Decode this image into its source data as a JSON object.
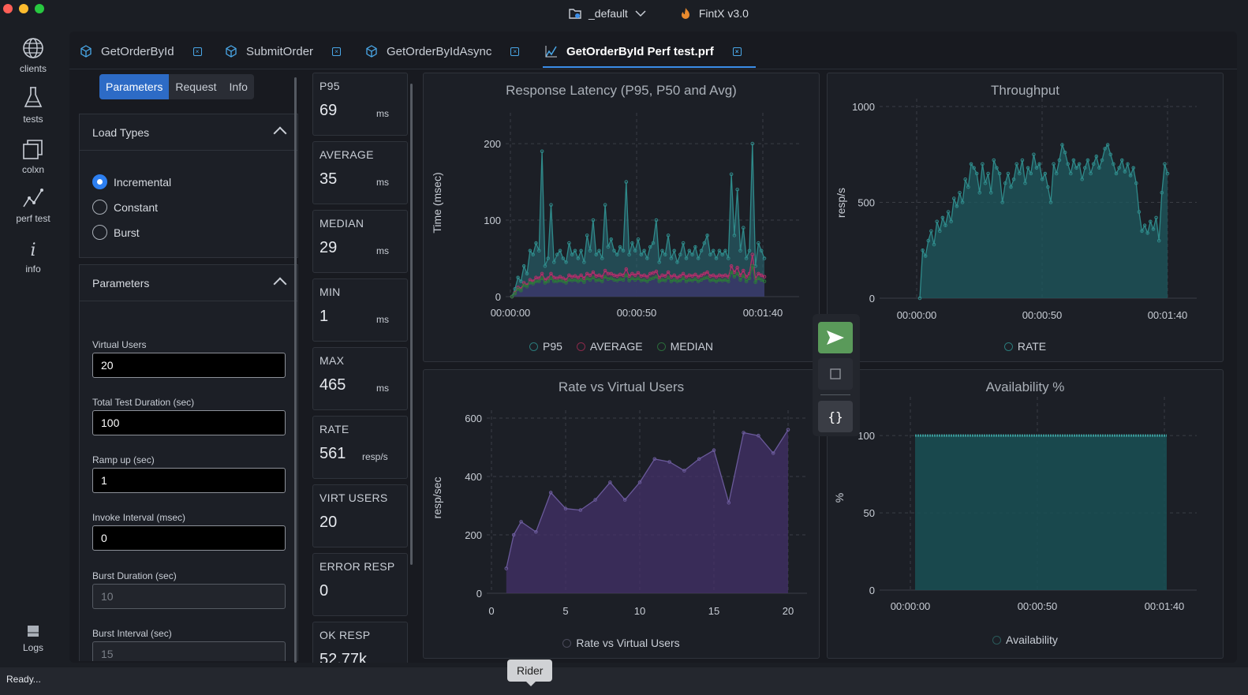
{
  "window": {
    "workspace": "_default",
    "app_title": "FintX v3.0"
  },
  "nav": [
    {
      "label": "clients",
      "icon": "globe-icon"
    },
    {
      "label": "tests",
      "icon": "flask-icon"
    },
    {
      "label": "colxn",
      "icon": "collection-icon"
    },
    {
      "label": "perf test",
      "icon": "chart-line-icon"
    },
    {
      "label": "info",
      "icon": "info-icon"
    },
    {
      "label": "Logs",
      "icon": "logs-icon"
    }
  ],
  "tabs": [
    {
      "label": "GetOrderById",
      "icon": "cube-icon"
    },
    {
      "label": "SubmitOrder",
      "icon": "cube-icon"
    },
    {
      "label": "GetOrderByIdAsync",
      "icon": "cube-icon"
    },
    {
      "label": "GetOrderById Perf test.prf",
      "icon": "perf-chart-icon",
      "active": true
    }
  ],
  "subtabs": [
    "Parameters",
    "Request",
    "Info"
  ],
  "load_types": {
    "title": "Load Types",
    "options": [
      "Incremental",
      "Constant",
      "Burst"
    ],
    "selected": "Incremental"
  },
  "parameters": {
    "title": "Parameters",
    "fields": [
      {
        "label": "Virtual Users",
        "value": "20"
      },
      {
        "label": "Total Test Duration (sec)",
        "value": "100"
      },
      {
        "label": "Ramp up (sec)",
        "value": "1"
      },
      {
        "label": "Invoke Interval (msec)",
        "value": "0"
      },
      {
        "label": "Burst Duration (sec)",
        "value": "10"
      },
      {
        "label": "Burst Interval (sec)",
        "value": "15"
      }
    ]
  },
  "metrics": [
    {
      "label": "P95",
      "value": "69",
      "unit": "ms"
    },
    {
      "label": "AVERAGE",
      "value": "35",
      "unit": "ms"
    },
    {
      "label": "MEDIAN",
      "value": "29",
      "unit": "ms"
    },
    {
      "label": "MIN",
      "value": "1",
      "unit": "ms"
    },
    {
      "label": "MAX",
      "value": "465",
      "unit": "ms"
    },
    {
      "label": "RATE",
      "value": "561",
      "unit": "resp/s"
    },
    {
      "label": "VIRT USERS",
      "value": "20",
      "unit": ""
    },
    {
      "label": "ERROR RESP",
      "value": "0",
      "unit": ""
    },
    {
      "label": "OK RESP",
      "value": "52.77k",
      "unit": ""
    }
  ],
  "colors": {
    "accent": "#2d6bc6",
    "teal": "#2a8c8c",
    "purple": "#5a4a8a",
    "send_green": "#5a9a5a"
  },
  "status": {
    "text": "Ready...",
    "tooltip": "Rider"
  },
  "chart_data": [
    {
      "type": "line",
      "title": "Response Latency (P95, P50 and Avg)",
      "ylabel": "Time (msec)",
      "xlabel": "",
      "x_ticks": [
        "00:00:00",
        "00:00:50",
        "00:01:40"
      ],
      "y_ticks": [
        "0",
        "100",
        "200"
      ],
      "ylim": [
        0,
        230
      ],
      "xlim": [
        0,
        110
      ],
      "series": [
        {
          "name": "P95",
          "values": [
            0,
            10,
            25,
            20,
            40,
            30,
            60,
            55,
            70,
            60,
            190,
            40,
            50,
            120,
            45,
            55,
            60,
            50,
            45,
            70,
            55,
            60,
            50,
            60,
            45,
            80,
            60,
            100,
            55,
            60,
            50,
            120,
            65,
            75,
            60,
            55,
            65,
            60,
            150,
            55,
            70,
            60,
            75,
            55,
            60,
            50,
            65,
            70,
            100,
            45,
            60,
            55,
            80,
            50,
            60,
            45,
            55,
            70,
            50,
            60,
            55,
            65,
            50,
            60,
            70,
            80,
            55,
            60,
            50,
            60,
            55,
            60,
            50,
            160,
            80,
            140,
            60,
            90,
            50,
            60,
            200,
            40,
            70,
            60,
            50
          ]
        },
        {
          "name": "AVERAGE",
          "values": [
            0,
            5,
            12,
            10,
            18,
            15,
            22,
            20,
            25,
            24,
            30,
            22,
            24,
            30,
            25,
            24,
            26,
            24,
            22,
            28,
            26,
            27,
            25,
            28,
            24,
            30,
            28,
            32,
            27,
            28,
            26,
            34,
            30,
            30,
            28,
            27,
            29,
            28,
            36,
            27,
            30,
            28,
            31,
            27,
            28,
            26,
            30,
            31,
            33,
            25,
            28,
            27,
            32,
            26,
            28,
            25,
            27,
            30,
            26,
            28,
            27,
            29,
            26,
            28,
            30,
            32,
            27,
            28,
            26,
            28,
            27,
            28,
            26,
            40,
            32,
            38,
            28,
            34,
            26,
            30,
            55,
            24,
            30,
            28,
            26
          ]
        },
        {
          "name": "MEDIAN",
          "values": [
            0,
            4,
            10,
            8,
            15,
            13,
            18,
            17,
            20,
            20,
            24,
            18,
            20,
            24,
            20,
            20,
            21,
            20,
            18,
            22,
            21,
            22,
            20,
            22,
            19,
            24,
            22,
            25,
            21,
            22,
            20,
            26,
            23,
            24,
            22,
            21,
            23,
            22,
            28,
            21,
            24,
            22,
            24,
            21,
            22,
            20,
            23,
            24,
            26,
            20,
            22,
            21,
            25,
            20,
            22,
            20,
            21,
            24,
            20,
            22,
            21,
            23,
            20,
            22,
            24,
            25,
            21,
            22,
            20,
            22,
            21,
            22,
            20,
            32,
            26,
            30,
            22,
            27,
            20,
            24,
            40,
            19,
            24,
            22,
            20
          ]
        }
      ],
      "legend": "bottom"
    },
    {
      "type": "area",
      "title": "Throughput",
      "ylabel": "resp/s",
      "xlabel": "",
      "x_ticks": [
        "00:00:00",
        "00:00:50",
        "00:01:40"
      ],
      "y_ticks": [
        "0",
        "500",
        "1000"
      ],
      "ylim": [
        0,
        1000
      ],
      "series": [
        {
          "name": "RATE",
          "values": [
            0,
            250,
            220,
            300,
            350,
            280,
            400,
            350,
            420,
            380,
            450,
            400,
            520,
            480,
            550,
            500,
            620,
            580,
            700,
            680,
            650,
            550,
            700,
            600,
            650,
            550,
            720,
            680,
            650,
            500,
            600,
            650,
            580,
            620,
            700,
            650,
            720,
            600,
            680,
            650,
            750,
            680,
            700,
            620,
            650,
            580,
            500,
            700,
            650,
            720,
            800,
            760,
            700,
            650,
            720,
            680,
            700,
            620,
            680,
            720,
            650,
            700,
            740,
            680,
            720,
            780,
            800,
            750,
            700,
            650,
            680,
            720,
            660,
            700,
            640,
            680,
            600,
            450,
            350,
            380,
            340,
            400,
            360,
            420,
            300,
            550,
            700,
            650
          ]
        }
      ],
      "legend": "bottom"
    },
    {
      "type": "area",
      "title": "Rate vs Virtual Users",
      "ylabel": "resp/sec",
      "xlabel": "",
      "x": [
        1,
        1.5,
        2,
        3,
        4,
        5,
        6,
        7,
        8,
        9,
        10,
        11,
        12,
        13,
        14,
        15,
        16,
        17,
        18,
        19,
        20
      ],
      "values": [
        85,
        200,
        245,
        210,
        345,
        290,
        285,
        320,
        380,
        320,
        380,
        460,
        450,
        420,
        460,
        490,
        310,
        550,
        540,
        480,
        560
      ],
      "xlim": [
        0,
        20
      ],
      "ylim": [
        0,
        600
      ],
      "x_ticks": [
        "0",
        "5",
        "10",
        "15",
        "20"
      ],
      "y_ticks": [
        "0",
        "200",
        "400",
        "600"
      ],
      "series_name": "Rate vs Virtual Users",
      "legend": "bottom"
    },
    {
      "type": "area",
      "title": "Availability %",
      "ylabel": "%",
      "xlabel": "",
      "x_ticks": [
        "00:00:00",
        "00:00:50",
        "00:01:40"
      ],
      "y_ticks": [
        "0",
        "50",
        "100"
      ],
      "ylim": [
        0,
        120
      ],
      "series_name": "Availability",
      "value": 100,
      "legend": "bottom"
    }
  ]
}
